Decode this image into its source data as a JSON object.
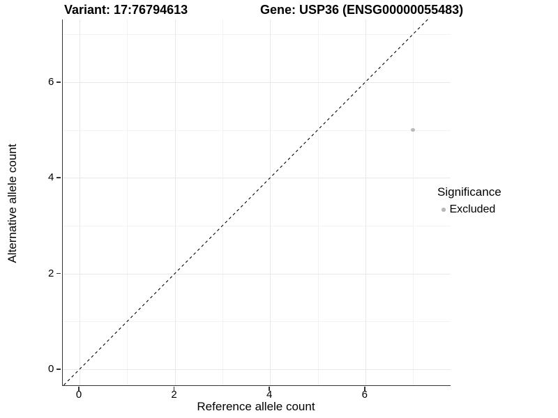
{
  "titles": {
    "left": "Variant: 17:76794613",
    "right": "Gene: USP36 (ENSG00000055483)"
  },
  "chart_data": {
    "type": "scatter",
    "title_left": "Variant: 17:76794613",
    "title_right": "Gene: USP36 (ENSG00000055483)",
    "xlabel": "Reference allele count",
    "ylabel": "Alternative allele count",
    "xlim": [
      -0.35,
      7.79
    ],
    "ylim": [
      -0.33,
      7.31
    ],
    "xticks": [
      0,
      2,
      4,
      6
    ],
    "yticks": [
      0,
      2,
      4,
      6
    ],
    "xticks_minor": [
      1,
      3,
      5,
      7
    ],
    "yticks_minor": [
      1,
      3,
      5,
      7
    ],
    "grid": "major-and-minor, on",
    "points": [
      {
        "x": 7,
        "y": 5,
        "series": "Excluded"
      }
    ],
    "reference_line": {
      "type": "identity y=x",
      "style": "dashed",
      "color": "#000000"
    },
    "legend": {
      "title": "Significance",
      "position": "right",
      "entries": [
        {
          "label": "Excluded",
          "color": "#b9b9b9"
        }
      ]
    }
  },
  "colors": {
    "background": "#ffffff",
    "axis_line": "#333333",
    "grid_major": "#e8e8e8",
    "grid_minor": "#f2f2f2",
    "point_excluded": "#b9b9b9",
    "text": "#000000"
  }
}
